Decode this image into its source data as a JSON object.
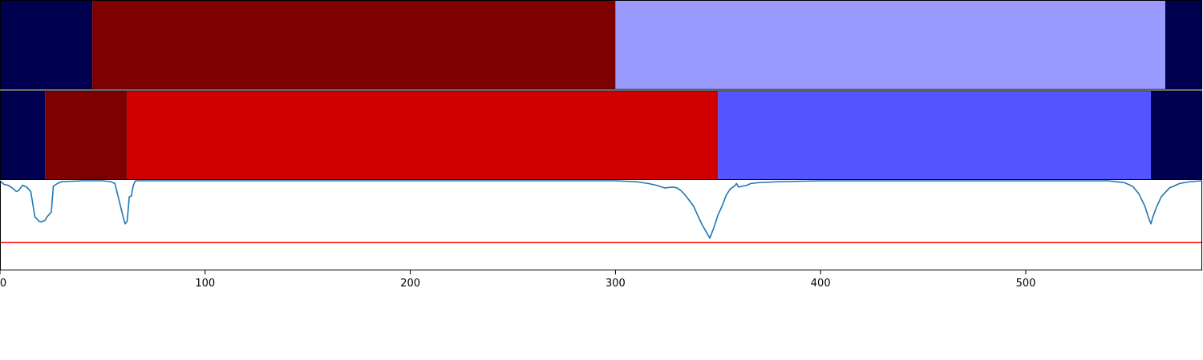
{
  "chart_data": {
    "type": "segmentation-strip-with-line",
    "x_range": [
      0,
      586
    ],
    "x_ticks": [
      0,
      100,
      200,
      300,
      400,
      500
    ],
    "x_tick_labels": [
      "0",
      "100",
      "200",
      "300",
      "400",
      "500"
    ],
    "grid": false,
    "legend": "none",
    "strips": [
      {
        "segments": [
          {
            "start": 0,
            "end": 45,
            "color": "#000050"
          },
          {
            "start": 45,
            "end": 300,
            "color": "#7f0000"
          },
          {
            "start": 300,
            "end": 568,
            "color": "#9a9aff"
          },
          {
            "start": 568,
            "end": 586,
            "color": "#000050"
          }
        ]
      },
      {
        "segments": [
          {
            "start": 0,
            "end": 22,
            "color": "#000050"
          },
          {
            "start": 22,
            "end": 62,
            "color": "#7f0000"
          },
          {
            "start": 62,
            "end": 350,
            "color": "#d00000"
          },
          {
            "start": 350,
            "end": 561,
            "color": "#5555ff"
          },
          {
            "start": 561,
            "end": 586,
            "color": "#000050"
          }
        ]
      }
    ],
    "line_panel": {
      "y_range": [
        0,
        1
      ],
      "series": {
        "color": "#1f77b4",
        "x": [
          0,
          2,
          4,
          6,
          8,
          9,
          11,
          13,
          15,
          17,
          19,
          20,
          22,
          23,
          25,
          26,
          28,
          30,
          40,
          50,
          54,
          56,
          60,
          61,
          62,
          63,
          64,
          65,
          66,
          70,
          80,
          200,
          300,
          310,
          316,
          320,
          324,
          328,
          330,
          332,
          334,
          336,
          338,
          340,
          342,
          344,
          346,
          348,
          350,
          352,
          354,
          356,
          358,
          359,
          360,
          362,
          364,
          366,
          370,
          380,
          400,
          500,
          540,
          548,
          552,
          555,
          558,
          560,
          561,
          562,
          564,
          566,
          570,
          575,
          580,
          586
        ],
        "y": [
          1.0,
          0.96,
          0.95,
          0.92,
          0.88,
          0.89,
          0.95,
          0.93,
          0.88,
          0.6,
          0.55,
          0.54,
          0.56,
          0.6,
          0.65,
          0.94,
          0.97,
          0.99,
          1.0,
          1.0,
          0.99,
          0.97,
          0.6,
          0.52,
          0.55,
          0.82,
          0.83,
          0.95,
          1.0,
          1.0,
          1.0,
          1.0,
          1.0,
          0.99,
          0.97,
          0.95,
          0.92,
          0.93,
          0.92,
          0.89,
          0.84,
          0.78,
          0.72,
          0.62,
          0.52,
          0.44,
          0.36,
          0.48,
          0.62,
          0.72,
          0.84,
          0.91,
          0.94,
          0.97,
          0.93,
          0.94,
          0.95,
          0.97,
          0.98,
          0.99,
          1.0,
          1.0,
          1.0,
          0.98,
          0.94,
          0.86,
          0.72,
          0.58,
          0.52,
          0.6,
          0.72,
          0.82,
          0.92,
          0.97,
          0.99,
          1.0
        ]
      },
      "threshold": {
        "value": 0.31,
        "color": "#ff0000"
      }
    }
  }
}
